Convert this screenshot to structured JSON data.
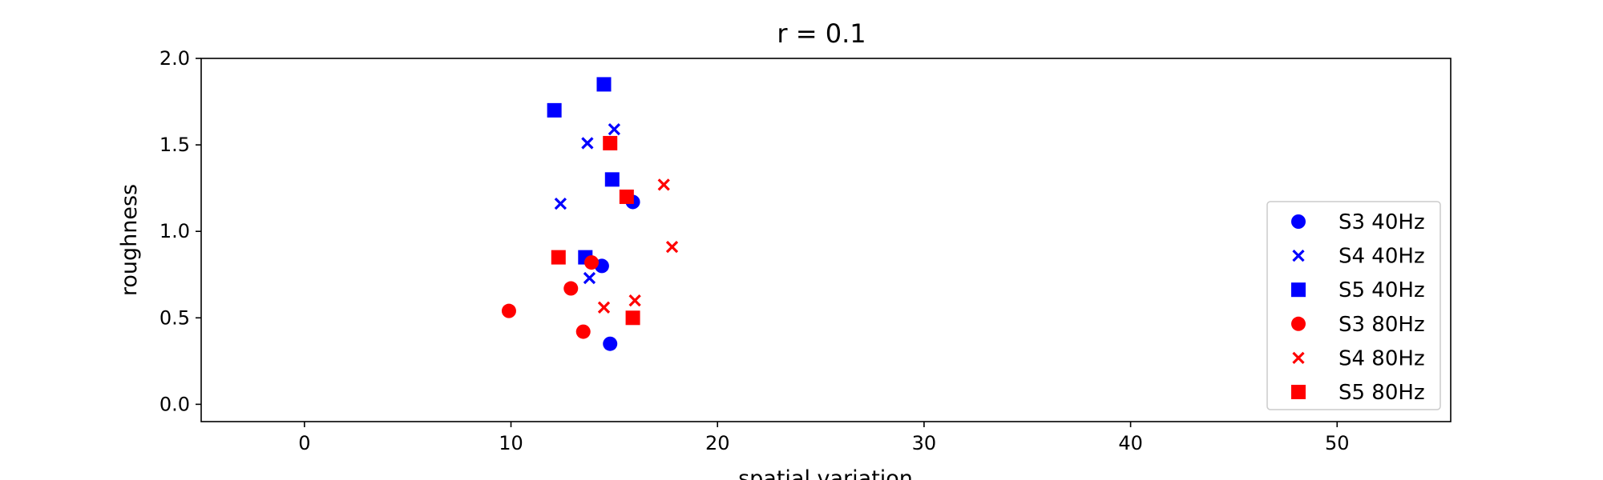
{
  "chart_data": {
    "type": "scatter",
    "title": "r = 0.1",
    "xlabel": "spatial variation",
    "ylabel": "roughness",
    "xlim": [
      -5,
      55.5
    ],
    "ylim": [
      -0.1,
      2.0
    ],
    "xticks": [
      0,
      10,
      20,
      30,
      40,
      50
    ],
    "yticks": [
      0.0,
      0.5,
      1.0,
      1.5,
      2.0
    ],
    "xtick_labels": [
      "0",
      "10",
      "20",
      "30",
      "40",
      "50"
    ],
    "ytick_labels": [
      "0.0",
      "0.5",
      "1.0",
      "1.5",
      "2.0"
    ],
    "grid": false,
    "legend_position": "lower-right",
    "series": [
      {
        "name": "S3 40Hz",
        "color": "#0000ff",
        "marker": "circle",
        "points": [
          [
            15.9,
            1.17
          ],
          [
            14.4,
            0.8
          ],
          [
            14.8,
            0.35
          ]
        ]
      },
      {
        "name": "S4 40Hz",
        "color": "#0000ff",
        "marker": "x",
        "points": [
          [
            15.0,
            1.59
          ],
          [
            13.7,
            1.51
          ],
          [
            12.4,
            1.16
          ],
          [
            13.8,
            0.73
          ]
        ]
      },
      {
        "name": "S5 40Hz",
        "color": "#0000ff",
        "marker": "square",
        "points": [
          [
            14.5,
            1.85
          ],
          [
            12.1,
            1.7
          ],
          [
            14.9,
            1.3
          ],
          [
            13.6,
            0.85
          ]
        ]
      },
      {
        "name": "S3 80Hz",
        "color": "#ff0000",
        "marker": "circle",
        "points": [
          [
            13.9,
            0.82
          ],
          [
            12.9,
            0.67
          ],
          [
            9.9,
            0.54
          ],
          [
            13.5,
            0.42
          ]
        ]
      },
      {
        "name": "S4 80Hz",
        "color": "#ff0000",
        "marker": "x",
        "points": [
          [
            17.4,
            1.27
          ],
          [
            17.8,
            0.91
          ],
          [
            16.0,
            0.6
          ],
          [
            14.5,
            0.56
          ]
        ]
      },
      {
        "name": "S5 80Hz",
        "color": "#ff0000",
        "marker": "square",
        "points": [
          [
            14.8,
            1.51
          ],
          [
            15.6,
            1.2
          ],
          [
            12.3,
            0.85
          ],
          [
            15.9,
            0.5
          ]
        ]
      }
    ]
  }
}
